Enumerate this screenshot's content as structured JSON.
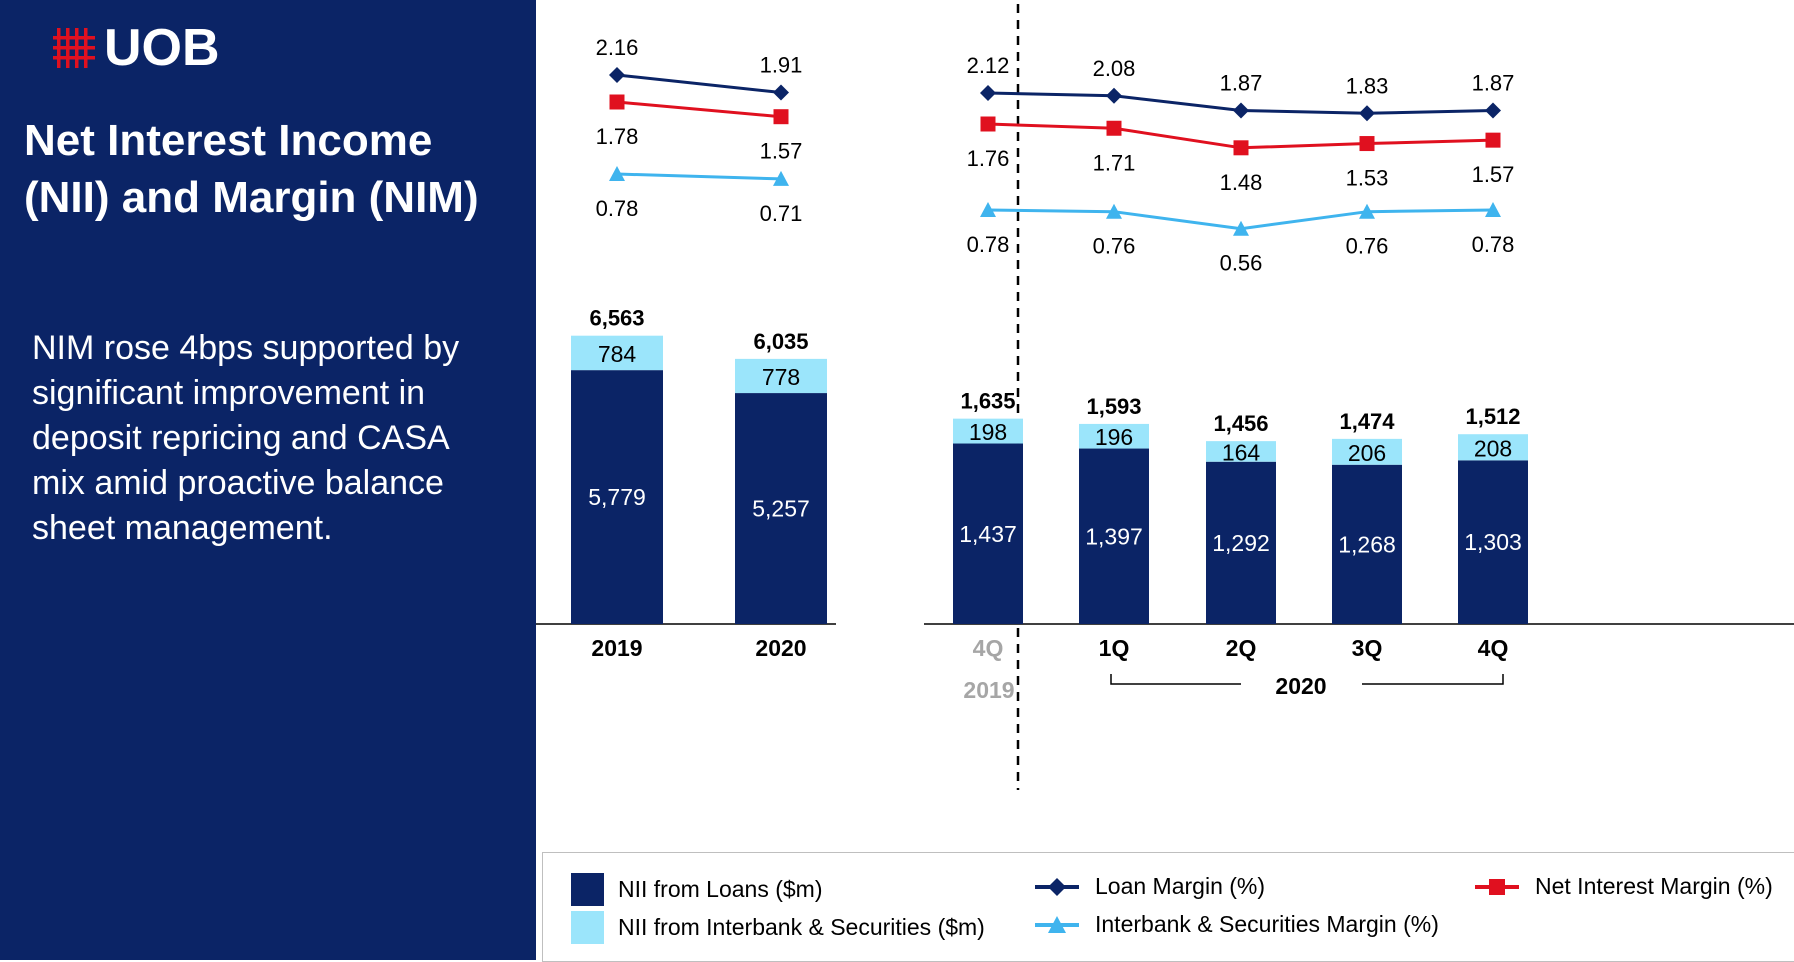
{
  "brand": {
    "name": "UOB"
  },
  "title_lines": [
    "Net Interest Income",
    "(NII) and Margin (NIM)"
  ],
  "body_text": "NIM rose 4bps supported by significant improvement in deposit repricing and CASA mix amid proactive balance sheet management.",
  "colors": {
    "navy": "#0b2466",
    "light_blue": "#9be5fb",
    "loan_margin": "#0b2466",
    "nim": "#e0101f",
    "interbank_margin": "#3fb4ee",
    "grey_text": "#a6a6a6"
  },
  "legend": {
    "nii_loans": "NII from Loans ($m)",
    "nii_interbank": "NII from Interbank & Securities ($m)",
    "loan_margin": "Loan Margin (%)",
    "interbank_margin": "Interbank & Securities Margin (%)",
    "nim": "Net Interest Margin (%)"
  },
  "chart_data": [
    {
      "type": "bar",
      "stacked": true,
      "categories": [
        "2019",
        "2020"
      ],
      "series": [
        {
          "name": "NII from Loans ($m)",
          "values": [
            5779,
            5257
          ]
        },
        {
          "name": "NII from Interbank & Securities ($m)",
          "values": [
            784,
            778
          ]
        }
      ],
      "totals": [
        "6,563",
        "6,035"
      ],
      "value_labels": {
        "loans": [
          "5,779",
          "5,257"
        ],
        "interbank": [
          "784",
          "778"
        ]
      },
      "lines": [
        {
          "name": "Loan Margin (%)",
          "values": [
            2.16,
            1.91
          ],
          "labels": [
            "2.16",
            "1.91"
          ]
        },
        {
          "name": "Net Interest Margin (%)",
          "values": [
            1.78,
            1.57
          ],
          "labels": [
            "1.78",
            "1.57"
          ]
        },
        {
          "name": "Interbank & Securities Margin (%)",
          "values": [
            0.78,
            0.71
          ],
          "labels": [
            "0.78",
            "0.71"
          ]
        }
      ]
    },
    {
      "type": "bar",
      "stacked": true,
      "categories": [
        "4Q",
        "1Q",
        "2Q",
        "3Q",
        "4Q"
      ],
      "period_labels": [
        "2019",
        "2020"
      ],
      "series": [
        {
          "name": "NII from Loans ($m)",
          "values": [
            1437,
            1397,
            1292,
            1268,
            1303
          ]
        },
        {
          "name": "NII from Interbank & Securities ($m)",
          "values": [
            198,
            196,
            164,
            206,
            208
          ]
        }
      ],
      "totals": [
        "1,635",
        "1,593",
        "1,456",
        "1,474",
        "1,512"
      ],
      "value_labels": {
        "loans": [
          "1,437",
          "1,397",
          "1,292",
          "1,268",
          "1,303"
        ],
        "interbank": [
          "198",
          "196",
          "164",
          "206",
          "208"
        ]
      },
      "lines": [
        {
          "name": "Loan Margin (%)",
          "values": [
            2.12,
            2.08,
            1.87,
            1.83,
            1.87
          ],
          "labels": [
            "2.12",
            "2.08",
            "1.87",
            "1.83",
            "1.87"
          ]
        },
        {
          "name": "Net Interest Margin (%)",
          "values": [
            1.76,
            1.71,
            1.48,
            1.53,
            1.57
          ],
          "labels": [
            "1.76",
            "1.71",
            "1.48",
            "1.53",
            "1.57"
          ]
        },
        {
          "name": "Interbank & Securities Margin (%)",
          "values": [
            0.78,
            0.76,
            0.56,
            0.76,
            0.78
          ],
          "labels": [
            "0.78",
            "0.76",
            "0.56",
            "0.76",
            "0.78"
          ]
        }
      ]
    }
  ]
}
